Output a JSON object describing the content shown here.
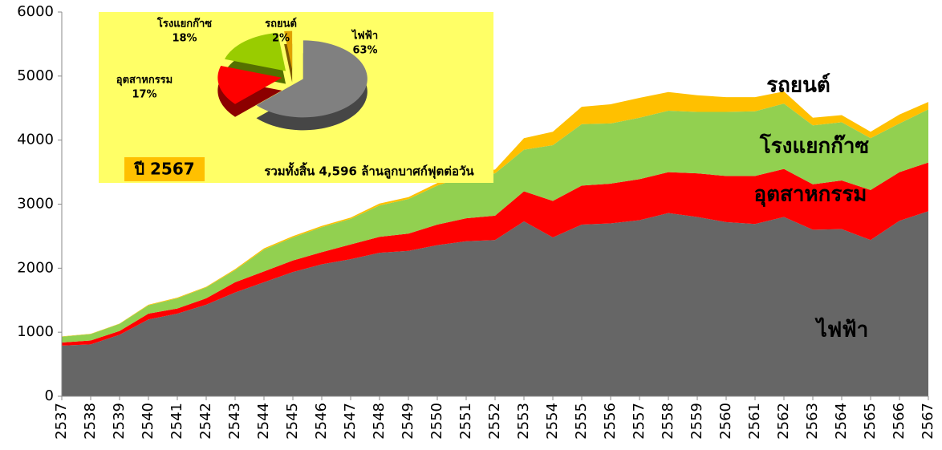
{
  "chart_data": [
    {
      "type": "stacked-area",
      "categories": [
        "2537",
        "2538",
        "2539",
        "2540",
        "2541",
        "2542",
        "2543",
        "2544",
        "2545",
        "2546",
        "2547",
        "2548",
        "2549",
        "2550",
        "2551",
        "2552",
        "2553",
        "2554",
        "2555",
        "2556",
        "2557",
        "2558",
        "2559",
        "2560",
        "2561",
        "2562",
        "2563",
        "2564",
        "2565",
        "2566",
        "2567"
      ],
      "series": [
        {
          "name": "ไฟฟ้า",
          "color": "#666666",
          "values": [
            790,
            810,
            960,
            1200,
            1290,
            1430,
            1620,
            1780,
            1940,
            2060,
            2140,
            2240,
            2270,
            2360,
            2420,
            2440,
            2730,
            2480,
            2680,
            2700,
            2750,
            2860,
            2800,
            2720,
            2690,
            2800,
            2600,
            2610,
            2440,
            2740,
            2890
          ]
        },
        {
          "name": "อุตสาหกรรม",
          "color": "#ff0000",
          "values": [
            50,
            60,
            60,
            90,
            80,
            100,
            160,
            170,
            180,
            190,
            230,
            250,
            270,
            320,
            360,
            380,
            470,
            570,
            610,
            620,
            640,
            640,
            680,
            720,
            750,
            750,
            710,
            760,
            780,
            760,
            760
          ]
        },
        {
          "name": "โรงแยกก๊าซ",
          "color": "#92d050",
          "values": [
            90,
            100,
            110,
            130,
            160,
            170,
            190,
            340,
            360,
            390,
            400,
            490,
            540,
            610,
            660,
            660,
            650,
            870,
            960,
            940,
            960,
            960,
            960,
            1000,
            1010,
            1020,
            920,
            910,
            810,
            760,
            830
          ]
        },
        {
          "name": "รถยนต์",
          "color": "#ffc000",
          "values": [
            5,
            5,
            5,
            10,
            10,
            10,
            15,
            20,
            20,
            20,
            20,
            30,
            30,
            40,
            50,
            60,
            180,
            210,
            270,
            300,
            310,
            290,
            260,
            230,
            220,
            190,
            120,
            110,
            100,
            140,
            116
          ]
        }
      ],
      "ylim": [
        0,
        6000
      ],
      "yticks": [
        0,
        1000,
        2000,
        3000,
        4000,
        5000,
        6000
      ]
    },
    {
      "type": "pie",
      "title": "ปี 2567",
      "subtitle": "รวมทั้งสิ้น 4,596 ล้านลูกบาศก์ฟุตต่อวัน",
      "categories": [
        "ไฟฟ้า",
        "อุตสาหกรรม",
        "โรงแยกก๊าซ",
        "รถยนต์"
      ],
      "values": [
        63,
        17,
        18,
        2
      ],
      "value_labels": [
        "63%",
        "17%",
        "18%",
        "2%"
      ],
      "colors": [
        "#808080",
        "#ff0000",
        "#99cc00",
        "#e0a000"
      ],
      "background": "#ffff66"
    }
  ]
}
